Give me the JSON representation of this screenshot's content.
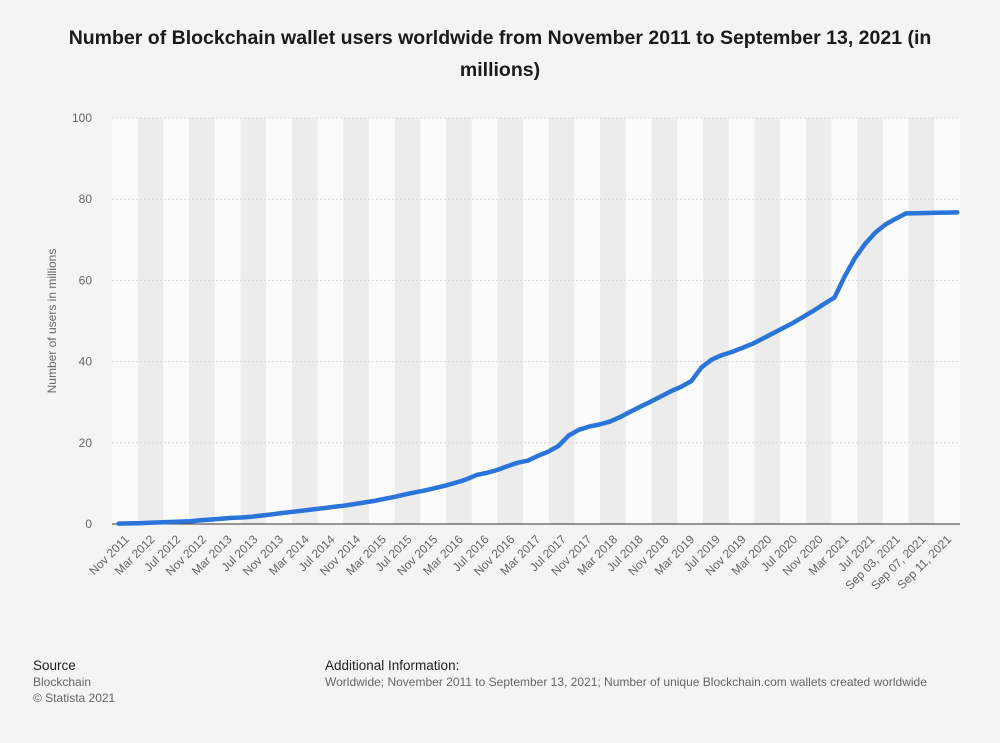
{
  "title": "Number of Blockchain wallet users worldwide from November 2011 to September 13, 2021 (in millions)",
  "colors": {
    "line": "#2b74d9",
    "band_light": "#fbfbfb",
    "band_dark": "#ececec",
    "grid": "#d6d6d6",
    "axis": "#333333",
    "text": "#666666"
  },
  "chart_data": {
    "type": "line",
    "ylabel": "Number of users in millions",
    "xlabel": "",
    "ylim": [
      0,
      100
    ],
    "yticks": [
      0,
      20,
      40,
      60,
      80,
      100
    ],
    "grid": true,
    "legend": "none",
    "tick_labels": [
      "Nov 2011",
      "Mar 2012",
      "Jul 2012",
      "Nov 2012",
      "Mar 2013",
      "Jul 2013",
      "Nov 2013",
      "Mar 2014",
      "Jul 2014",
      "Nov 2014",
      "Mar 2015",
      "Jul 2015",
      "Nov 2015",
      "Mar 2016",
      "Jul 2016",
      "Nov 2016",
      "Mar 2017",
      "Jul 2017",
      "Nov 2017",
      "Mar 2018",
      "Jul 2018",
      "Nov 2018",
      "Mar 2019",
      "Jul 2019",
      "Nov 2019",
      "Mar 2020",
      "Jul 2020",
      "Nov 2020",
      "Mar 2021",
      "Jul 2021",
      "Sep 03, 2021",
      "Sep 07, 2021",
      "Sep 11, 2021"
    ],
    "series": [
      {
        "values": [
          0.1,
          0.15,
          0.2,
          0.3,
          0.4,
          0.5,
          0.6,
          0.7,
          0.9,
          1.1,
          1.3,
          1.5,
          1.6,
          1.8,
          2.1,
          2.4,
          2.7,
          3.0,
          3.3,
          3.6,
          3.9,
          4.2,
          4.5,
          4.9,
          5.3,
          5.7,
          6.2,
          6.7,
          7.3,
          7.8,
          8.3,
          8.9,
          9.5,
          10.2,
          11.0,
          12.1,
          12.6,
          13.3,
          14.2,
          15.1,
          15.6,
          16.8,
          17.8,
          19.2,
          21.8,
          23.2,
          24.0,
          24.5,
          25.2,
          26.3,
          27.6,
          28.9,
          30.1,
          31.4,
          32.7,
          33.8,
          35.2,
          38.6,
          40.5,
          41.6,
          42.4,
          43.4,
          44.4,
          45.7,
          47.0,
          48.3,
          49.6,
          51.1,
          52.6,
          54.2,
          55.8,
          61.0,
          65.5,
          69.0,
          71.8,
          73.8,
          75.2,
          76.5,
          76.55,
          76.6,
          76.65,
          76.7,
          76.75
        ]
      }
    ]
  },
  "footer": {
    "source_heading": "Source",
    "source_name": "Blockchain",
    "copyright": "© Statista 2021",
    "info_heading": "Additional Information:",
    "info_text": "Worldwide; November 2011 to September 13, 2021; Number of unique Blockchain.com wallets created worldwide"
  }
}
